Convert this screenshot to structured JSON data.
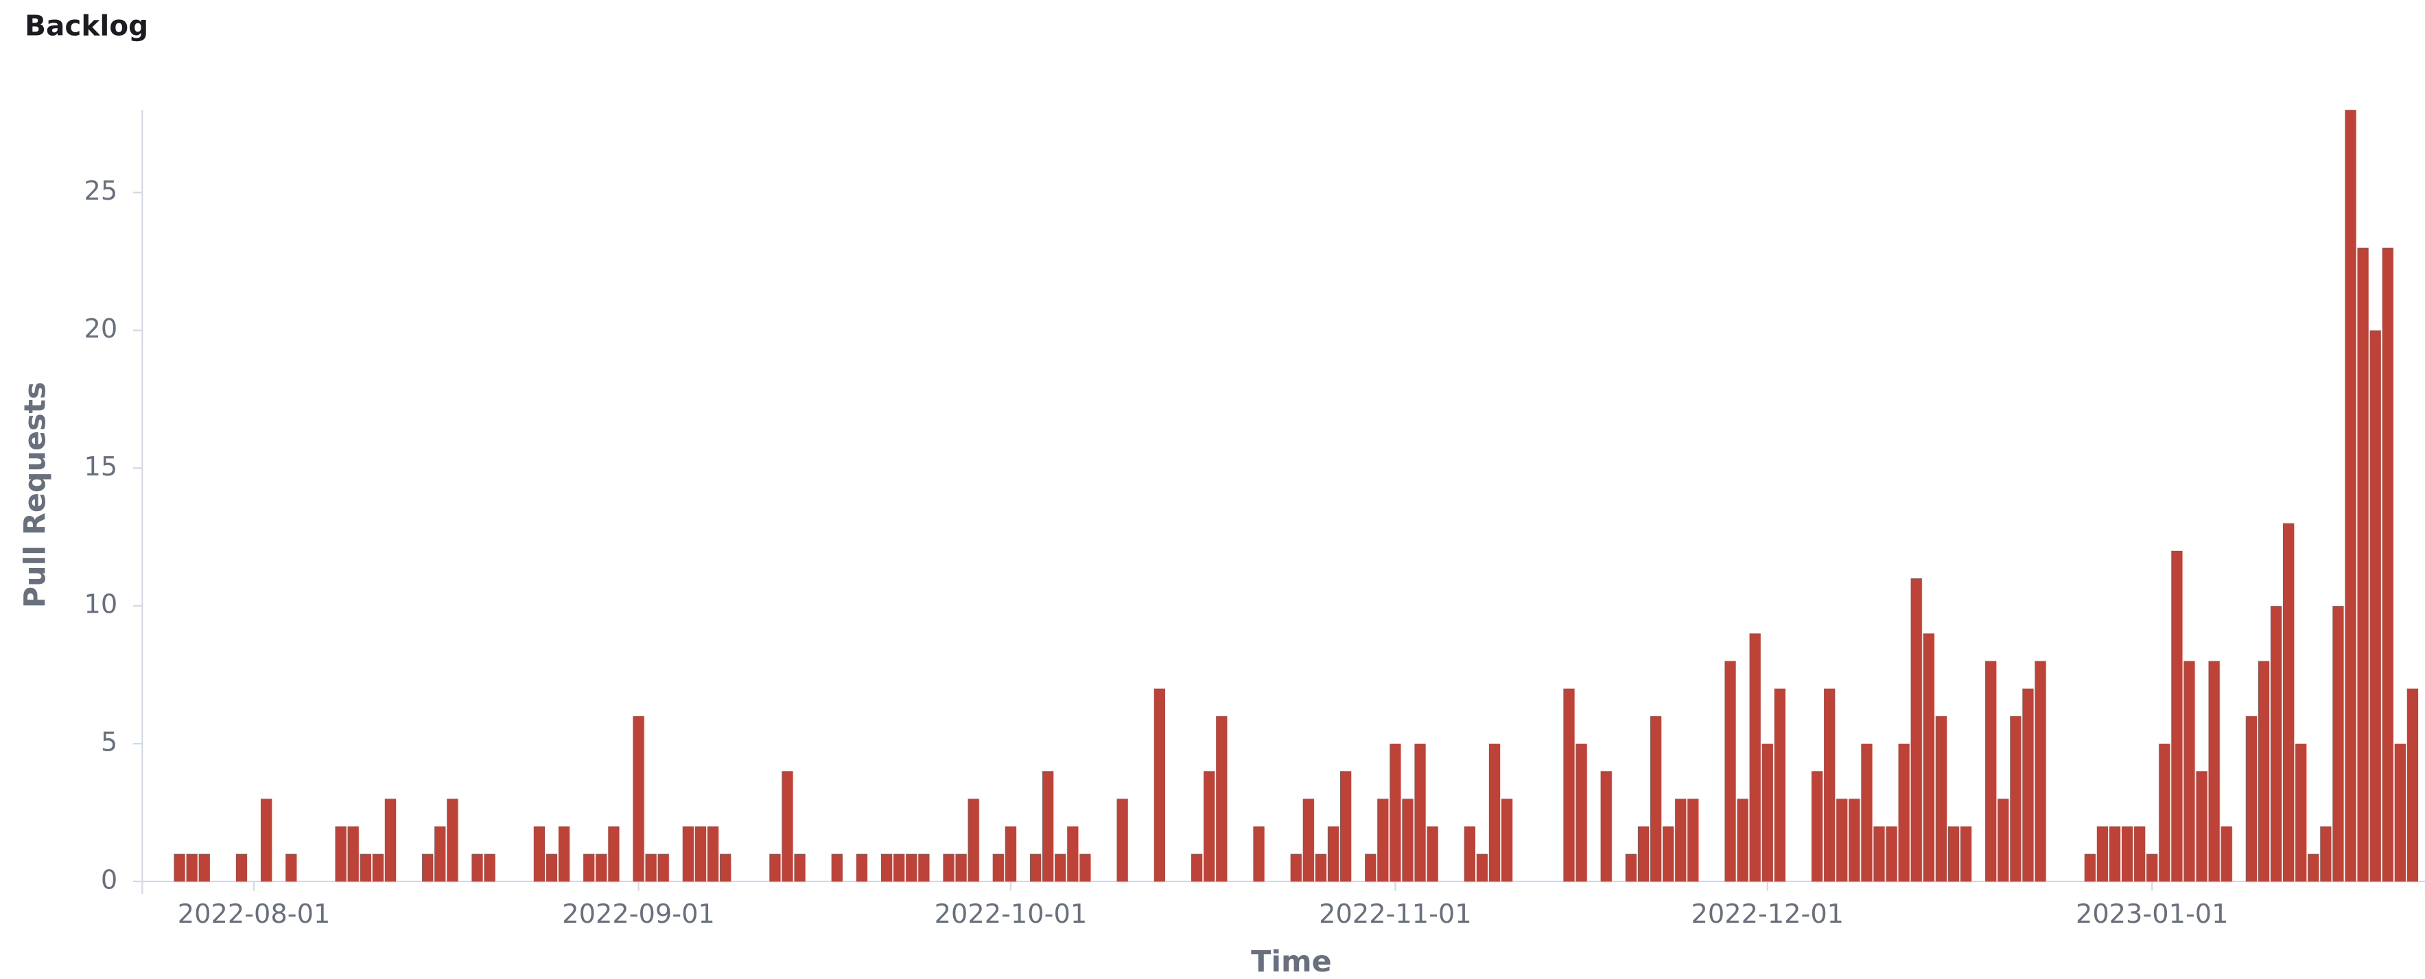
{
  "chart_data": {
    "type": "bar",
    "title": "Backlog",
    "x_label": "Time",
    "y_label": "Pull Requests",
    "color": "#bd4339",
    "x": [
      "2022-07-26",
      "2022-07-27",
      "2022-07-28",
      "2022-07-31",
      "2022-08-02",
      "2022-08-04",
      "2022-08-08",
      "2022-08-09",
      "2022-08-10",
      "2022-08-11",
      "2022-08-12",
      "2022-08-15",
      "2022-08-16",
      "2022-08-17",
      "2022-08-19",
      "2022-08-20",
      "2022-08-24",
      "2022-08-25",
      "2022-08-26",
      "2022-08-28",
      "2022-08-29",
      "2022-08-30",
      "2022-09-01",
      "2022-09-02",
      "2022-09-03",
      "2022-09-05",
      "2022-09-06",
      "2022-09-07",
      "2022-09-08",
      "2022-09-12",
      "2022-09-13",
      "2022-09-14",
      "2022-09-17",
      "2022-09-19",
      "2022-09-21",
      "2022-09-22",
      "2022-09-23",
      "2022-09-24",
      "2022-09-26",
      "2022-09-27",
      "2022-09-28",
      "2022-09-30",
      "2022-10-01",
      "2022-10-03",
      "2022-10-04",
      "2022-10-05",
      "2022-10-06",
      "2022-10-07",
      "2022-10-10",
      "2022-10-13",
      "2022-10-16",
      "2022-10-17",
      "2022-10-18",
      "2022-10-21",
      "2022-10-24",
      "2022-10-25",
      "2022-10-26",
      "2022-10-27",
      "2022-10-28",
      "2022-10-30",
      "2022-10-31",
      "2022-11-01",
      "2022-11-02",
      "2022-11-03",
      "2022-11-04",
      "2022-11-07",
      "2022-11-08",
      "2022-11-09",
      "2022-11-10",
      "2022-11-15",
      "2022-11-16",
      "2022-11-18",
      "2022-11-20",
      "2022-11-21",
      "2022-11-22",
      "2022-11-23",
      "2022-11-24",
      "2022-11-25",
      "2022-11-28",
      "2022-11-29",
      "2022-11-30",
      "2022-12-01",
      "2022-12-02",
      "2022-12-05",
      "2022-12-06",
      "2022-12-07",
      "2022-12-08",
      "2022-12-09",
      "2022-12-10",
      "2022-12-11",
      "2022-12-12",
      "2022-12-13",
      "2022-12-14",
      "2022-12-15",
      "2022-12-16",
      "2022-12-17",
      "2022-12-19",
      "2022-12-20",
      "2022-12-21",
      "2022-12-22",
      "2022-12-23",
      "2022-12-27",
      "2022-12-28",
      "2022-12-29",
      "2022-12-30",
      "2022-12-31",
      "2023-01-01",
      "2023-01-02",
      "2023-01-03",
      "2023-01-04",
      "2023-01-05",
      "2023-01-06",
      "2023-01-07",
      "2023-01-09",
      "2023-01-10",
      "2023-01-11",
      "2023-01-12",
      "2023-01-13",
      "2023-01-14",
      "2023-01-15",
      "2023-01-16",
      "2023-01-17",
      "2023-01-18",
      "2023-01-19",
      "2023-01-20",
      "2023-01-21",
      "2023-01-22"
    ],
    "values": [
      1,
      1,
      1,
      1,
      3,
      1,
      2,
      2,
      1,
      1,
      3,
      1,
      2,
      3,
      1,
      1,
      2,
      1,
      2,
      1,
      1,
      2,
      6,
      1,
      1,
      2,
      2,
      2,
      1,
      1,
      4,
      1,
      1,
      1,
      1,
      1,
      1,
      1,
      1,
      1,
      3,
      1,
      2,
      1,
      4,
      1,
      2,
      1,
      3,
      7,
      1,
      4,
      6,
      2,
      1,
      3,
      1,
      2,
      4,
      1,
      3,
      5,
      3,
      5,
      2,
      2,
      1,
      5,
      3,
      7,
      5,
      4,
      1,
      2,
      6,
      2,
      3,
      3,
      8,
      3,
      9,
      5,
      7,
      4,
      7,
      3,
      3,
      5,
      2,
      2,
      5,
      11,
      9,
      6,
      2,
      2,
      8,
      3,
      6,
      7,
      8,
      1,
      2,
      2,
      2,
      2,
      1,
      5,
      12,
      8,
      4,
      8,
      2,
      6,
      8,
      10,
      13,
      5,
      1,
      2,
      10,
      28,
      23,
      20,
      23,
      5,
      7
    ],
    "xlim": [
      "2022-07-23",
      "2023-01-23"
    ],
    "xticks": [
      "2022-08-01",
      "2022-09-01",
      "2022-10-01",
      "2022-11-01",
      "2022-12-01",
      "2023-01-01"
    ],
    "ylim": [
      0,
      28
    ],
    "yticks": [
      0,
      5,
      10,
      15,
      20,
      25
    ]
  }
}
